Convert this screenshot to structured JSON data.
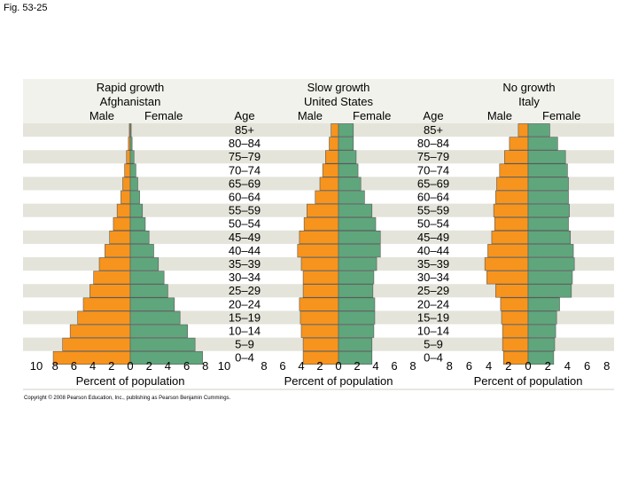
{
  "figure_label": "Fig. 53-25",
  "copyright": "Copyright © 2008 Pearson Education, Inc., publishing as Pearson Benjamin Cummings.",
  "colors": {
    "male": "#f7941d",
    "female": "#5fa67c",
    "band": "#e4e4da",
    "bar_edge": "#5a5a5a"
  },
  "chart_data": [
    {
      "type": "bar",
      "orientation": "horizontal-butterfly",
      "title": [
        "Rapid growth",
        "Afghanistan"
      ],
      "male_label": "Male",
      "female_label": "Female",
      "age_header": "Age",
      "categories": [
        "85+",
        "80–84",
        "75–79",
        "70–74",
        "65–69",
        "60–64",
        "55–59",
        "50–54",
        "45–49",
        "40–44",
        "35–39",
        "30–34",
        "25–29",
        "20–24",
        "15–19",
        "10–14",
        "5–9",
        "0–4"
      ],
      "series": [
        {
          "name": "Male",
          "values": [
            0.1,
            0.2,
            0.4,
            0.6,
            0.8,
            1.0,
            1.4,
            1.8,
            2.2,
            2.7,
            3.3,
            3.9,
            4.3,
            5.0,
            5.6,
            6.4,
            7.2,
            8.2
          ]
        },
        {
          "name": "Female",
          "values": [
            0.1,
            0.2,
            0.4,
            0.6,
            0.8,
            1.0,
            1.3,
            1.6,
            2.0,
            2.5,
            3.0,
            3.6,
            4.0,
            4.7,
            5.3,
            6.1,
            6.9,
            7.7
          ]
        }
      ],
      "tick_labels": [
        "10",
        "8",
        "6",
        "4",
        "2",
        "0",
        "2",
        "4",
        "6",
        "8",
        "10"
      ],
      "xlabel": "Percent of population",
      "xlim": [
        -10,
        10
      ]
    },
    {
      "type": "bar",
      "orientation": "horizontal-butterfly",
      "title": [
        "Slow growth",
        "United States"
      ],
      "male_label": "Male",
      "female_label": "Female",
      "age_header": "Age",
      "categories": [
        "85+",
        "80–84",
        "75–79",
        "70–74",
        "65–69",
        "60–64",
        "55–59",
        "50–54",
        "45–49",
        "40–44",
        "35–39",
        "30–34",
        "25–29",
        "20–24",
        "15–19",
        "10–14",
        "5–9",
        "0–4"
      ],
      "series": [
        {
          "name": "Male",
          "values": [
            0.8,
            1.0,
            1.4,
            1.7,
            2.0,
            2.5,
            3.4,
            3.7,
            4.2,
            4.4,
            4.0,
            3.8,
            3.8,
            4.2,
            4.1,
            4.0,
            3.8,
            3.8
          ]
        },
        {
          "name": "Female",
          "values": [
            1.6,
            1.6,
            1.9,
            2.1,
            2.4,
            2.8,
            3.6,
            4.0,
            4.5,
            4.5,
            4.1,
            3.8,
            3.7,
            3.9,
            3.9,
            3.8,
            3.6,
            3.6
          ]
        }
      ],
      "tick_labels": [
        "8",
        "6",
        "4",
        "2",
        "0",
        "2",
        "4",
        "6",
        "8"
      ],
      "xlabel": "Percent of population",
      "xlim": [
        -8,
        8
      ]
    },
    {
      "type": "bar",
      "orientation": "horizontal-butterfly",
      "title": [
        "No growth",
        "Italy"
      ],
      "male_label": "Male",
      "female_label": "Female",
      "age_header": null,
      "categories": [
        "85+",
        "80–84",
        "75–79",
        "70–74",
        "65–69",
        "60–64",
        "55–59",
        "50–54",
        "45–49",
        "40–44",
        "35–39",
        "30–34",
        "25–29",
        "20–24",
        "15–19",
        "10–14",
        "5–9",
        "0–4"
      ],
      "series": [
        {
          "name": "Male",
          "values": [
            1.0,
            1.9,
            2.4,
            2.9,
            3.2,
            3.3,
            3.5,
            3.4,
            3.7,
            4.1,
            4.4,
            4.2,
            3.3,
            2.8,
            2.7,
            2.6,
            2.6,
            2.5
          ]
        },
        {
          "name": "Female",
          "values": [
            2.2,
            3.0,
            3.8,
            4.0,
            4.1,
            4.1,
            4.2,
            4.1,
            4.3,
            4.6,
            4.7,
            4.5,
            4.4,
            3.2,
            2.9,
            2.8,
            2.7,
            2.6
          ]
        }
      ],
      "tick_labels": [
        "8",
        "6",
        "4",
        "2",
        "0",
        "2",
        "4",
        "6",
        "8"
      ],
      "xlabel": "Percent of population",
      "xlim": [
        -8,
        8
      ]
    }
  ]
}
